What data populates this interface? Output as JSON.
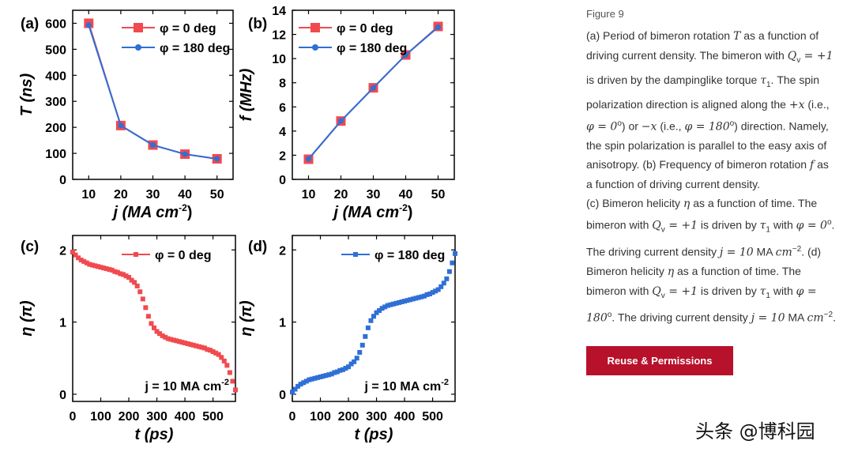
{
  "chart_data": [
    {
      "panel": "(a)",
      "type": "line",
      "xlabel": "j (MA cm",
      "xlabel_sup": "-2",
      "xlabel_close": ")",
      "ylabel": "T (ns)",
      "x": [
        10,
        20,
        30,
        40,
        50
      ],
      "xlim": [
        5,
        55
      ],
      "ylim": [
        0,
        650
      ],
      "xticks": [
        10,
        20,
        30,
        40,
        50
      ],
      "yticks": [
        0,
        100,
        200,
        300,
        400,
        500,
        600
      ],
      "series": [
        {
          "name": "φ = 0 deg",
          "color": "#f04a4f",
          "marker": "square",
          "values": [
            600,
            207,
            132,
            97,
            79
          ]
        },
        {
          "name": "φ = 180 deg",
          "color": "#2f6fd6",
          "marker": "circle",
          "values": [
            593,
            207,
            132,
            97,
            79
          ]
        }
      ],
      "legend": "top-right"
    },
    {
      "panel": "(b)",
      "type": "line",
      "xlabel": "j (MA cm",
      "xlabel_sup": "-2",
      "xlabel_close": ")",
      "ylabel": "f (MHz)",
      "x": [
        10,
        20,
        30,
        40,
        50
      ],
      "xlim": [
        5,
        55
      ],
      "ylim": [
        0,
        14
      ],
      "xticks": [
        10,
        20,
        30,
        40,
        50
      ],
      "yticks": [
        0,
        2,
        4,
        6,
        8,
        10,
        12,
        14
      ],
      "series": [
        {
          "name": "φ = 0 deg",
          "color": "#f04a4f",
          "marker": "square",
          "values": [
            1.67,
            4.83,
            7.58,
            10.3,
            12.66
          ]
        },
        {
          "name": "φ = 180 deg",
          "color": "#2f6fd6",
          "marker": "circle",
          "values": [
            1.69,
            4.83,
            7.58,
            10.3,
            12.6
          ]
        }
      ],
      "legend": "top-left"
    },
    {
      "panel": "(c)",
      "type": "scatter",
      "xlabel": "t (ps)",
      "ylabel": "η (π)",
      "xlim": [
        0,
        580
      ],
      "ylim": [
        -0.1,
        2.2
      ],
      "xticks": [
        0,
        100,
        200,
        300,
        400,
        500
      ],
      "yticks": [
        0,
        1,
        2
      ],
      "annotation": "j = 10 MA cm",
      "annotation_sup": "-2",
      "series": [
        {
          "name": "φ = 0 deg",
          "color": "#f04a4f",
          "marker": "square",
          "x": [
            0,
            10,
            20,
            30,
            40,
            50,
            60,
            70,
            80,
            90,
            100,
            110,
            120,
            130,
            140,
            150,
            160,
            170,
            180,
            190,
            200,
            210,
            220,
            230,
            240,
            250,
            260,
            270,
            280,
            290,
            300,
            310,
            320,
            330,
            340,
            350,
            360,
            370,
            380,
            390,
            400,
            410,
            420,
            430,
            440,
            450,
            460,
            470,
            480,
            490,
            500,
            510,
            520,
            530,
            540,
            550,
            560,
            570,
            580
          ],
          "y": [
            1.97,
            1.93,
            1.89,
            1.86,
            1.84,
            1.82,
            1.8,
            1.79,
            1.78,
            1.77,
            1.76,
            1.75,
            1.74,
            1.73,
            1.72,
            1.7,
            1.69,
            1.67,
            1.66,
            1.64,
            1.62,
            1.58,
            1.55,
            1.5,
            1.42,
            1.32,
            1.2,
            1.08,
            0.98,
            0.92,
            0.87,
            0.84,
            0.81,
            0.79,
            0.77,
            0.76,
            0.75,
            0.74,
            0.73,
            0.72,
            0.71,
            0.7,
            0.69,
            0.68,
            0.67,
            0.66,
            0.65,
            0.64,
            0.62,
            0.61,
            0.59,
            0.57,
            0.55,
            0.51,
            0.46,
            0.4,
            0.3,
            0.18,
            0.06
          ]
        }
      ],
      "legend": "top-right"
    },
    {
      "panel": "(d)",
      "type": "scatter",
      "xlabel": "t (ps)",
      "ylabel": "η (π)",
      "xlim": [
        0,
        580
      ],
      "ylim": [
        -0.1,
        2.2
      ],
      "xticks": [
        0,
        100,
        200,
        300,
        400,
        500
      ],
      "yticks": [
        0,
        1,
        2
      ],
      "annotation": "j = 10 MA cm",
      "annotation_sup": "-2",
      "series": [
        {
          "name": "φ = 180 deg",
          "color": "#2f6fd6",
          "marker": "square",
          "x": [
            0,
            10,
            20,
            30,
            40,
            50,
            60,
            70,
            80,
            90,
            100,
            110,
            120,
            130,
            140,
            150,
            160,
            170,
            180,
            190,
            200,
            210,
            220,
            230,
            240,
            250,
            260,
            270,
            280,
            290,
            300,
            310,
            320,
            330,
            340,
            350,
            360,
            370,
            380,
            390,
            400,
            410,
            420,
            430,
            440,
            450,
            460,
            470,
            480,
            490,
            500,
            510,
            520,
            530,
            540,
            550,
            560,
            570,
            580
          ],
          "y": [
            0.03,
            0.07,
            0.11,
            0.14,
            0.16,
            0.18,
            0.2,
            0.21,
            0.22,
            0.23,
            0.24,
            0.25,
            0.26,
            0.27,
            0.28,
            0.3,
            0.31,
            0.33,
            0.34,
            0.36,
            0.38,
            0.42,
            0.45,
            0.5,
            0.58,
            0.68,
            0.8,
            0.92,
            1.02,
            1.08,
            1.13,
            1.16,
            1.19,
            1.21,
            1.23,
            1.24,
            1.25,
            1.26,
            1.27,
            1.28,
            1.29,
            1.3,
            1.31,
            1.32,
            1.33,
            1.34,
            1.35,
            1.36,
            1.38,
            1.39,
            1.41,
            1.43,
            1.45,
            1.49,
            1.54,
            1.6,
            1.7,
            1.82,
            1.95
          ]
        }
      ],
      "legend": "top-right"
    }
  ],
  "caption": {
    "figure_label": "Figure 9",
    "segments": [
      {
        "t": "(a) Period of bimeron rotation "
      },
      {
        "t": "T",
        "m": true
      },
      {
        "t": " as a function of driving current density. The bimeron with "
      },
      {
        "t": "Q",
        "m": true
      },
      {
        "t": "v",
        "sub": true
      },
      {
        "t": " = +1",
        "m": true
      },
      {
        "t": " is driven by the dampinglike torque "
      },
      {
        "t": "τ",
        "m": true
      },
      {
        "t": "1",
        "sub": true
      },
      {
        "t": ". The spin polarization direction is aligned along the "
      },
      {
        "t": "+x",
        "m": true
      },
      {
        "t": " (i.e., "
      },
      {
        "t": "φ = 0",
        "m": true
      },
      {
        "t": "o",
        "sup": true
      },
      {
        "t": ") or "
      },
      {
        "t": "−x",
        "m": true
      },
      {
        "t": " (i.e., "
      },
      {
        "t": "φ = 180",
        "m": true
      },
      {
        "t": "o",
        "sup": true
      },
      {
        "t": ") direction. Namely, the spin polarization is parallel to the easy axis of anisotropy. (b) Frequency of bimeron rotation "
      },
      {
        "t": "f",
        "m": true
      },
      {
        "t": " as a function of driving current density."
      },
      {
        "br": true
      },
      {
        "t": "(c) Bimeron helicity "
      },
      {
        "t": "η",
        "m": true
      },
      {
        "t": " as a function of time. The bimeron with "
      },
      {
        "t": "Q",
        "m": true
      },
      {
        "t": "v",
        "sub": true
      },
      {
        "t": " = +1",
        "m": true
      },
      {
        "t": " is driven by "
      },
      {
        "t": "τ",
        "m": true
      },
      {
        "t": "1",
        "sub": true
      },
      {
        "t": " with "
      },
      {
        "t": "φ = 0",
        "m": true
      },
      {
        "t": "o",
        "sup": true
      },
      {
        "t": ". The driving current density "
      },
      {
        "t": "j = 10",
        "m": true
      },
      {
        "t": " MA "
      },
      {
        "t": "cm",
        "m": true
      },
      {
        "t": "−2",
        "sup": true
      },
      {
        "t": ". (d) Bimeron helicity "
      },
      {
        "t": "η",
        "m": true
      },
      {
        "t": " as a function of time. The bimeron with "
      },
      {
        "t": "Q",
        "m": true
      },
      {
        "t": "v",
        "sub": true
      },
      {
        "t": " = +1",
        "m": true
      },
      {
        "t": " is driven by "
      },
      {
        "t": "τ",
        "m": true
      },
      {
        "t": "1",
        "sub": true
      },
      {
        "t": " with "
      },
      {
        "t": "φ = 180",
        "m": true
      },
      {
        "t": "o",
        "sup": true
      },
      {
        "t": ". The driving current density "
      },
      {
        "t": "j = 10",
        "m": true
      },
      {
        "t": " MA "
      },
      {
        "t": "cm",
        "m": true
      },
      {
        "t": "−2",
        "sup": true
      },
      {
        "t": "."
      }
    ]
  },
  "reuse_button": {
    "label": "Reuse & Permissions"
  },
  "watermark": {
    "text": "头条 @博科园"
  }
}
